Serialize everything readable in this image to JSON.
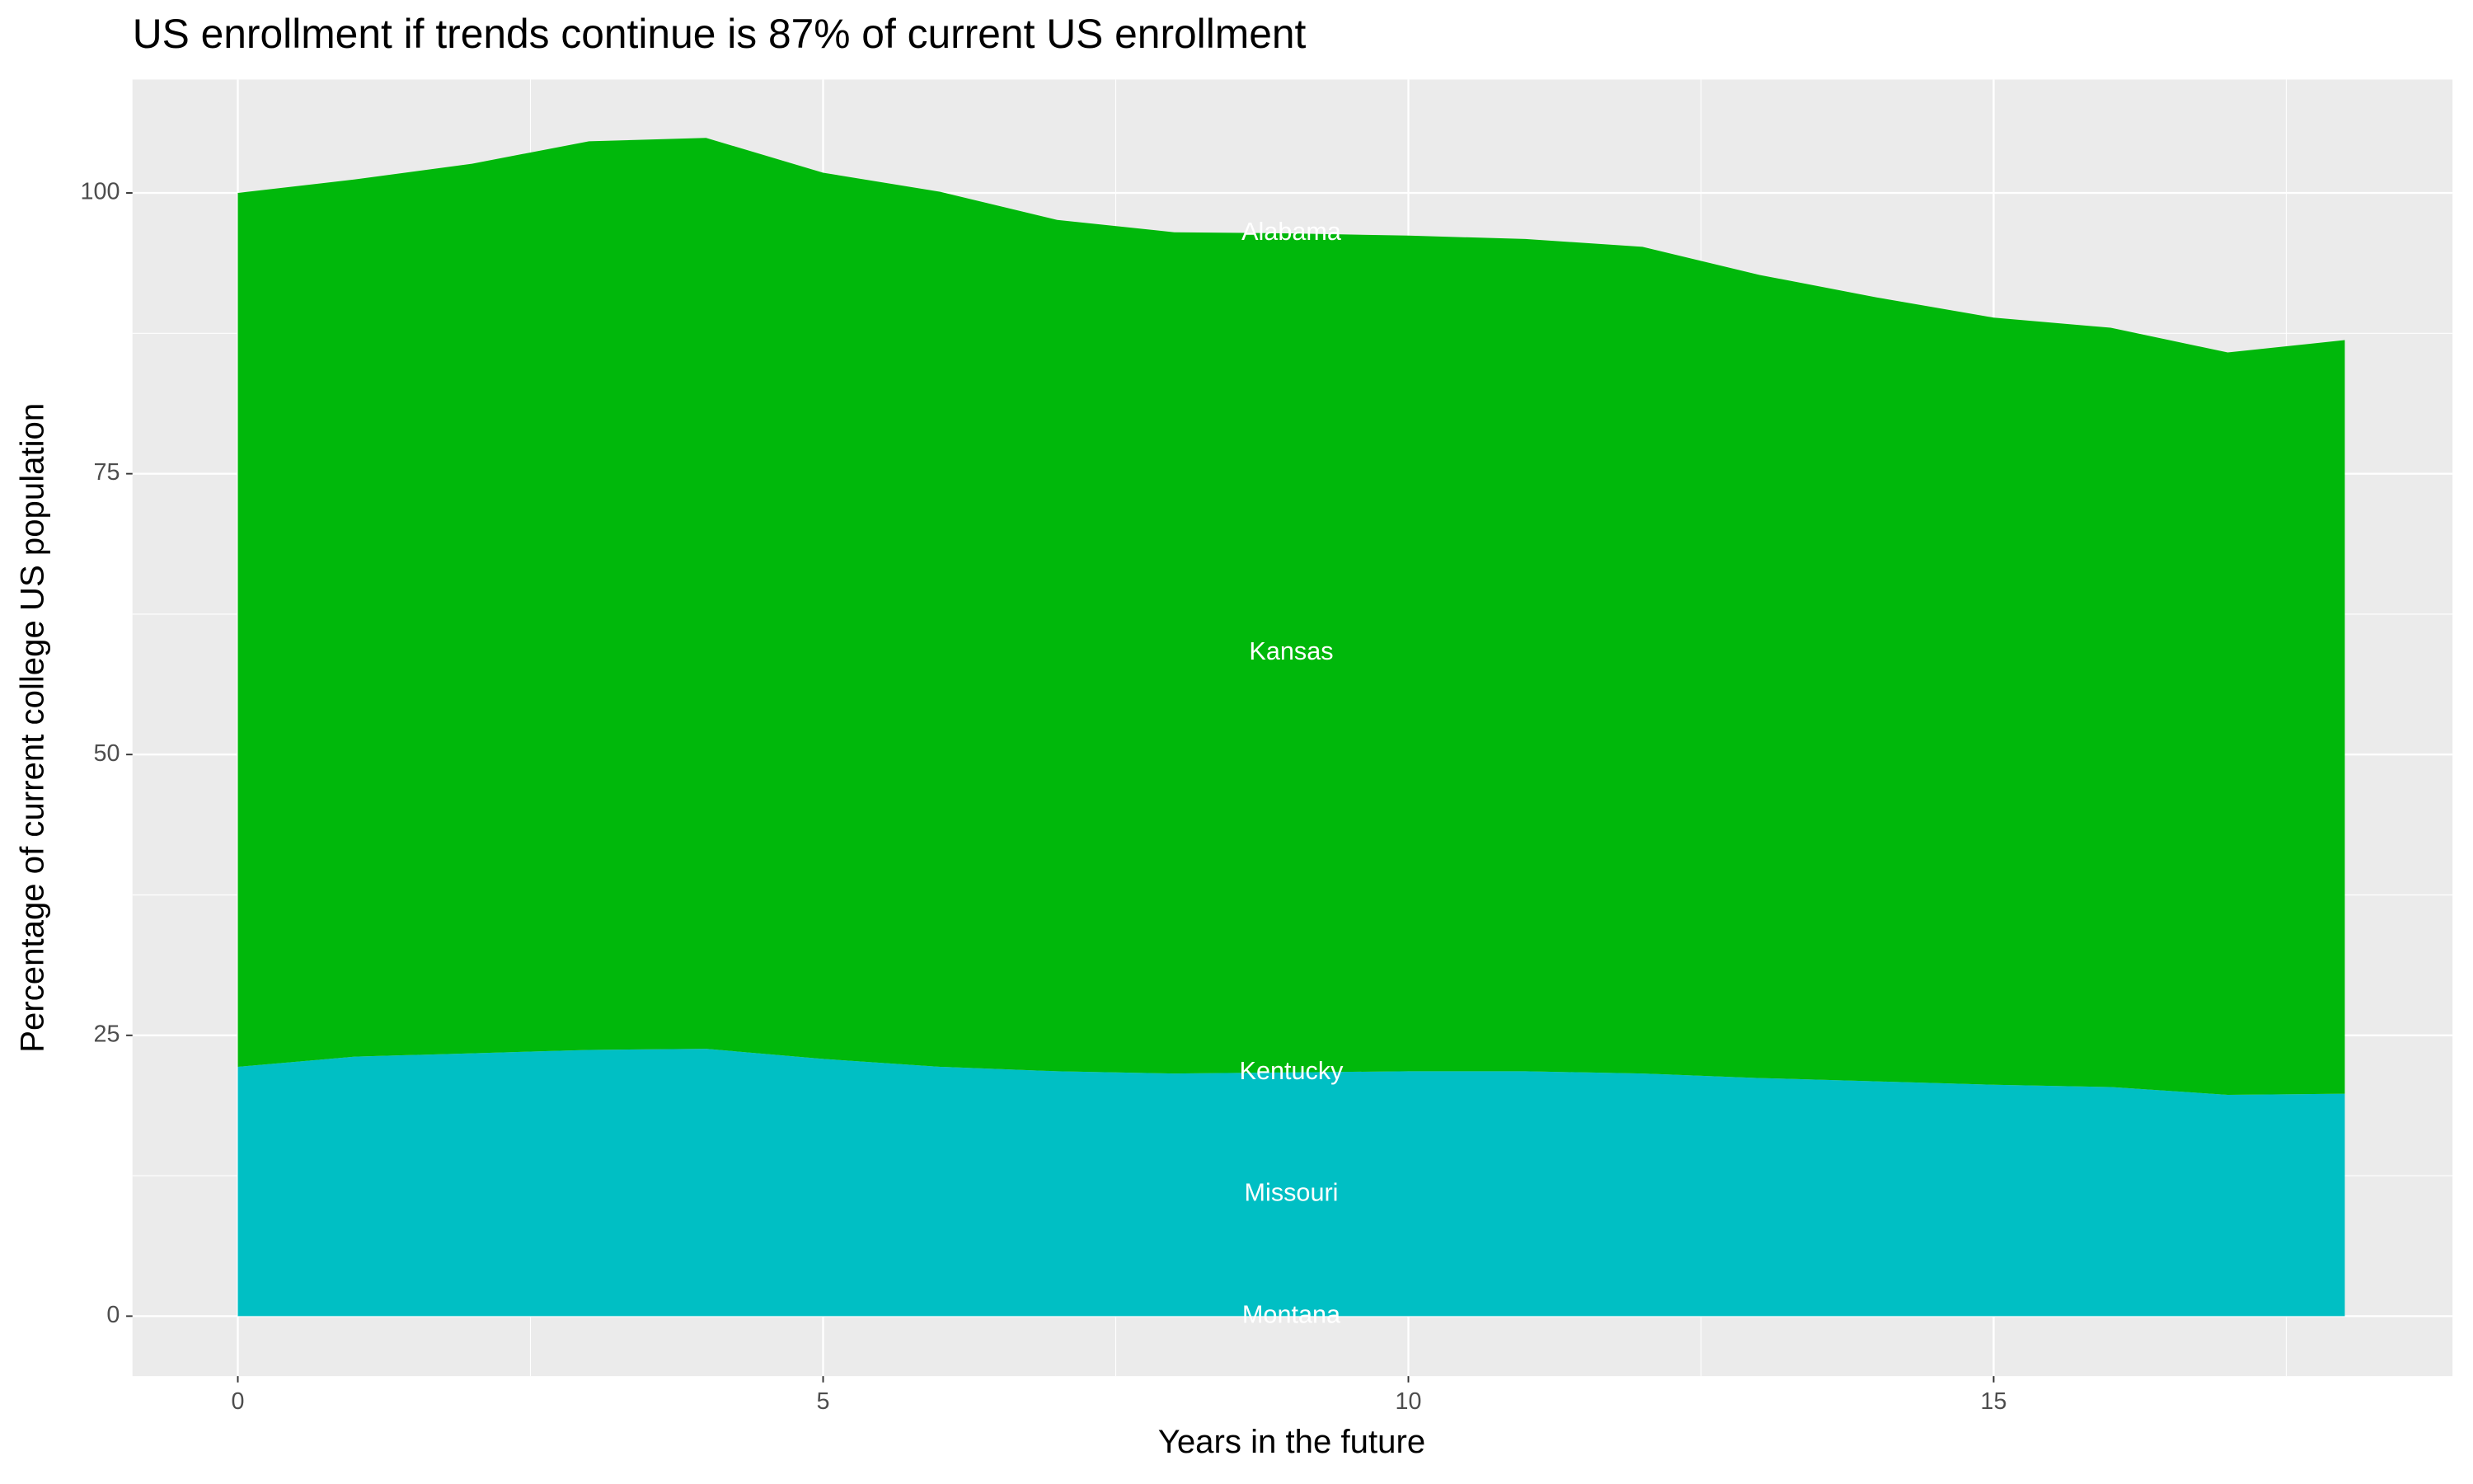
{
  "chart_data": {
    "type": "stacked-area",
    "title": "US enrollment if trends continue is 87% of current US enrollment",
    "x_label": "Years in the future",
    "y_label": "Percentage of current college US population",
    "x": [
      0,
      1,
      2,
      3,
      4,
      5,
      6,
      7,
      8,
      9,
      10,
      11,
      12,
      13,
      14,
      15,
      16,
      17,
      18
    ],
    "series": [
      {
        "name": "Montana",
        "color": "#F8766D",
        "values": [
          0,
          0,
          0,
          0,
          0,
          0,
          0,
          0,
          0,
          0,
          0,
          0,
          0,
          0,
          0,
          0,
          0,
          0,
          0
        ]
      },
      {
        "name": "Missouri",
        "color": "#00BFC4",
        "values": [
          22.2,
          23.1,
          23.4,
          23.7,
          23.8,
          22.9,
          22.2,
          21.8,
          21.6,
          21.7,
          21.8,
          21.8,
          21.6,
          21.2,
          20.9,
          20.6,
          20.4,
          19.7,
          19.8
        ]
      },
      {
        "name": "Kentucky",
        "color": "#A3A500",
        "values": [
          0,
          0,
          0,
          0,
          0,
          0,
          0,
          0,
          0,
          0,
          0,
          0,
          0,
          0,
          0,
          0,
          0,
          0,
          0
        ]
      },
      {
        "name": "Kansas",
        "color": "#00B80B",
        "values": [
          77.8,
          78.1,
          79.2,
          80.9,
          81.1,
          78.9,
          77.9,
          75.8,
          74.9,
          74.7,
          74.4,
          74.1,
          73.6,
          71.5,
          69.8,
          68.3,
          67.6,
          66.1,
          67.1
        ]
      },
      {
        "name": "Alabama",
        "color": "#E76BF3",
        "values": [
          0,
          0,
          0,
          0,
          0,
          0,
          0,
          0,
          0,
          0,
          0,
          0,
          0,
          0,
          0,
          0,
          0,
          0,
          0
        ]
      }
    ],
    "xlim": [
      -0.9,
      18.92
    ],
    "ylim": [
      -5.34,
      110.1
    ],
    "xticks": [
      0,
      5,
      10,
      15
    ],
    "yticks": [
      0,
      25,
      50,
      75,
      100
    ],
    "grid": true
  }
}
